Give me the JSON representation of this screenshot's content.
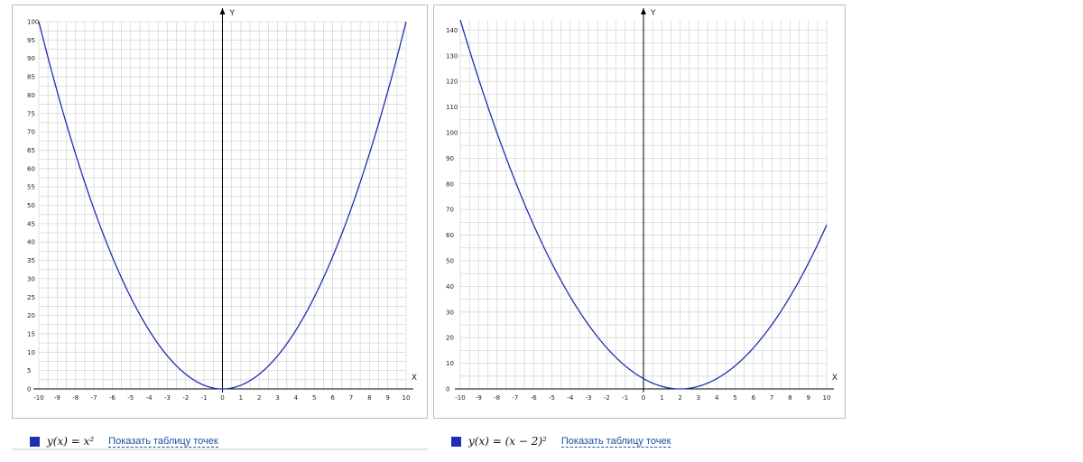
{
  "colors": {
    "series": "#1f2fb3",
    "grid": "#d8d8d8",
    "axis": "#000000",
    "legend_swatch": "#1f2fb3"
  },
  "chart_data": [
    {
      "type": "line",
      "xlabel": "X",
      "ylabel": "Y",
      "xlim": [
        -10,
        10
      ],
      "ylim": [
        0,
        100
      ],
      "x_ticks": [
        -10,
        -9,
        -8,
        -7,
        -6,
        -5,
        -4,
        -3,
        -2,
        -1,
        0,
        1,
        2,
        3,
        4,
        5,
        6,
        7,
        8,
        9,
        10
      ],
      "y_ticks": [
        0,
        5,
        10,
        15,
        20,
        25,
        30,
        35,
        40,
        45,
        50,
        55,
        60,
        65,
        70,
        75,
        80,
        85,
        90,
        95,
        100
      ],
      "grid": true,
      "series": [
        {
          "function": "y = x^2",
          "x": [
            -10,
            -9,
            -8,
            -7,
            -6,
            -5,
            -4,
            -3,
            -2,
            -1,
            0,
            1,
            2,
            3,
            4,
            5,
            6,
            7,
            8,
            9,
            10
          ],
          "y": [
            100,
            81,
            64,
            49,
            36,
            25,
            16,
            9,
            4,
            1,
            0,
            1,
            4,
            9,
            16,
            25,
            36,
            49,
            64,
            81,
            100
          ]
        }
      ],
      "legend": {
        "formula_text": "y(x) = x²",
        "link_text": "Показать таблицу точек"
      }
    },
    {
      "type": "line",
      "xlabel": "X",
      "ylabel": "Y",
      "xlim": [
        -10,
        10
      ],
      "ylim": [
        0,
        144
      ],
      "x_ticks": [
        -10,
        -9,
        -8,
        -7,
        -6,
        -5,
        -4,
        -3,
        -2,
        -1,
        0,
        1,
        2,
        3,
        4,
        5,
        6,
        7,
        8,
        9,
        10
      ],
      "y_ticks": [
        0,
        10,
        20,
        30,
        40,
        50,
        60,
        70,
        80,
        90,
        100,
        110,
        120,
        130,
        140
      ],
      "grid": true,
      "series": [
        {
          "function": "y = (x - 2)^2",
          "x": [
            -10,
            -9,
            -8,
            -7,
            -6,
            -5,
            -4,
            -3,
            -2,
            -1,
            0,
            1,
            2,
            3,
            4,
            5,
            6,
            7,
            8,
            9,
            10
          ],
          "y": [
            144,
            121,
            100,
            81,
            64,
            49,
            36,
            25,
            16,
            9,
            4,
            1,
            0,
            1,
            4,
            9,
            16,
            25,
            36,
            49,
            64
          ]
        }
      ],
      "legend": {
        "formula_text": "y(x) = (x − 2)²",
        "link_text": "Показать таблицу точек"
      }
    }
  ]
}
